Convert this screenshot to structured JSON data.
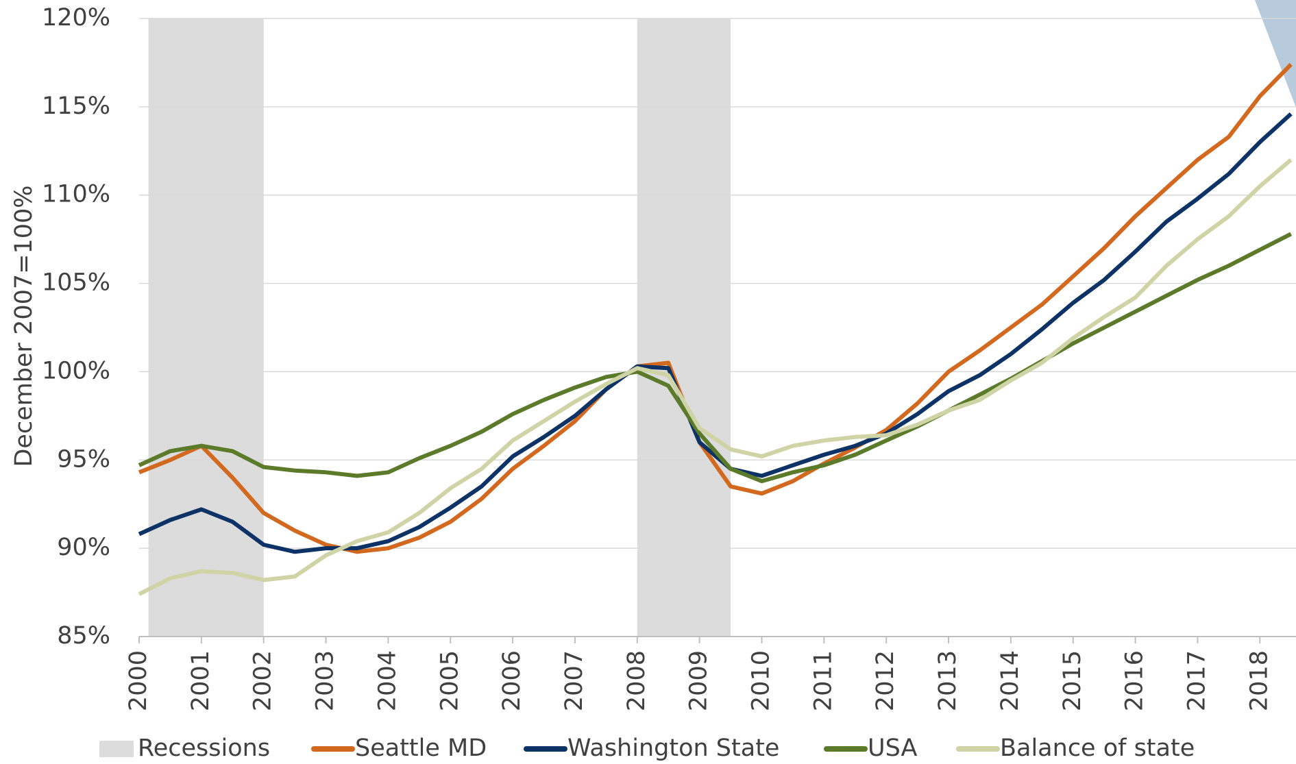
{
  "chart_data": {
    "type": "line",
    "ylabel": "December 2007=100%",
    "x": [
      2000,
      2000.5,
      2001,
      2001.5,
      2002,
      2002.5,
      2003,
      2003.5,
      2004,
      2004.5,
      2005,
      2005.5,
      2006,
      2006.5,
      2007,
      2007.5,
      2008,
      2008.5,
      2009,
      2009.5,
      2010,
      2010.5,
      2011,
      2011.5,
      2012,
      2012.5,
      2013,
      2013.5,
      2014,
      2014.5,
      2015,
      2015.5,
      2016,
      2016.5,
      2017,
      2017.5,
      2018,
      2018.5
    ],
    "recessions": {
      "name": "Recessions",
      "color": "#dcdcdc",
      "spans": [
        [
          2000.15,
          2002.0
        ],
        [
          2008.0,
          2009.5
        ]
      ]
    },
    "series": [
      {
        "name": "Seattle MD",
        "color": "#d2691e",
        "values": [
          94.3,
          95,
          95.8,
          94,
          92,
          91,
          90.2,
          89.8,
          90,
          90.6,
          91.5,
          92.8,
          94.5,
          95.8,
          97.2,
          99,
          100.3,
          100.5,
          96,
          93.5,
          93.1,
          93.8,
          94.8,
          95.7,
          96.7,
          98.2,
          100,
          101.2,
          102.5,
          103.8,
          105.4,
          107,
          108.8,
          110.4,
          112,
          113.3,
          115.6,
          117.4
        ]
      },
      {
        "name": "Washington State",
        "color": "#0d3266",
        "values": [
          90.8,
          91.6,
          92.2,
          91.5,
          90.2,
          89.8,
          90,
          90,
          90.4,
          91.2,
          92.3,
          93.5,
          95.2,
          96.3,
          97.5,
          99,
          100.3,
          100.2,
          96,
          94.5,
          94.1,
          94.7,
          95.3,
          95.8,
          96.5,
          97.6,
          98.9,
          99.8,
          101,
          102.4,
          103.9,
          105.2,
          106.8,
          108.5,
          109.8,
          111.2,
          113,
          114.6
        ]
      },
      {
        "name": "USA",
        "color": "#5b7a2a",
        "values": [
          94.7,
          95.5,
          95.8,
          95.5,
          94.6,
          94.4,
          94.3,
          94.1,
          94.3,
          95.1,
          95.8,
          96.6,
          97.6,
          98.4,
          99.1,
          99.7,
          100,
          99.2,
          96.5,
          94.5,
          93.8,
          94.3,
          94.7,
          95.3,
          96.1,
          96.9,
          97.8,
          98.7,
          99.6,
          100.6,
          101.6,
          102.5,
          103.4,
          104.3,
          105.2,
          106,
          106.9,
          107.8
        ]
      },
      {
        "name": "Balance of state",
        "color": "#cfd4a6",
        "values": [
          87.4,
          88.3,
          88.7,
          88.6,
          88.2,
          88.4,
          89.6,
          90.4,
          90.9,
          92,
          93.4,
          94.5,
          96.1,
          97.2,
          98.3,
          99.3,
          100.2,
          99.8,
          96.8,
          95.6,
          95.2,
          95.8,
          96.1,
          96.3,
          96.4,
          97,
          97.8,
          98.4,
          99.5,
          100.5,
          101.9,
          103.1,
          104.2,
          106,
          107.5,
          108.8,
          110.5,
          112
        ]
      }
    ],
    "xlim": [
      2000,
      2018.58
    ],
    "xticks": [
      2000,
      2001,
      2002,
      2003,
      2004,
      2005,
      2006,
      2007,
      2008,
      2009,
      2010,
      2011,
      2012,
      2013,
      2014,
      2015,
      2016,
      2017,
      2018
    ],
    "ylim": [
      85,
      120
    ],
    "yticks": [
      {
        "value": 85,
        "label": "85%"
      },
      {
        "value": 90,
        "label": "90%"
      },
      {
        "value": 95,
        "label": "95%"
      },
      {
        "value": 100,
        "label": "100%"
      },
      {
        "value": 105,
        "label": "105%"
      },
      {
        "value": 110,
        "label": "110%"
      },
      {
        "value": 115,
        "label": "115%"
      },
      {
        "value": 120,
        "label": "120%"
      }
    ],
    "grid": true
  }
}
